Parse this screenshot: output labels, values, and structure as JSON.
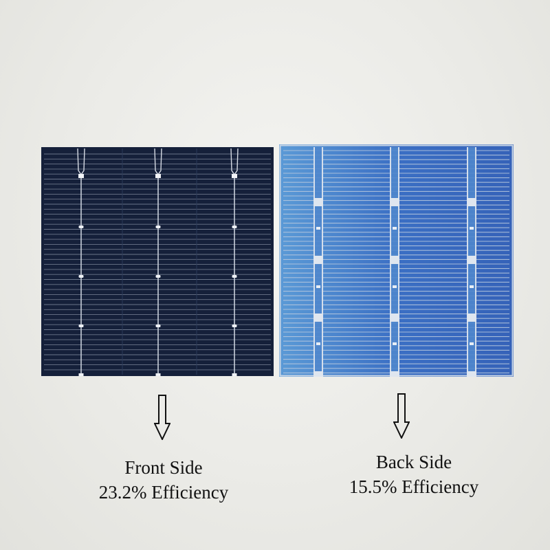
{
  "front": {
    "side_label": "Front Side",
    "efficiency_label": "23.2% Efficiency",
    "cell_color": "#15203a",
    "finger_color": "#8a93a6"
  },
  "back": {
    "side_label": "Back Side",
    "efficiency_label": "15.5% Efficiency",
    "cell_color": "#3f72c4",
    "finger_color": "#b9c9de"
  },
  "arrow_icon": "down-arrow-icon"
}
